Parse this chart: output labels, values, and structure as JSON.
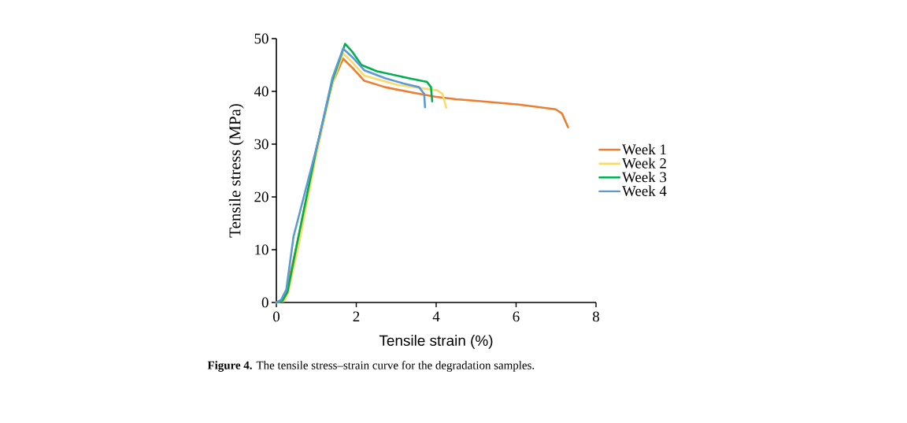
{
  "chart_data": {
    "type": "line",
    "xlabel": "Tensile strain (%)",
    "ylabel": "Tensile stress (MPa)",
    "xlim": [
      0,
      8
    ],
    "xticks": [
      0,
      2,
      4,
      6,
      8
    ],
    "ylim": [
      0,
      50
    ],
    "yticks": [
      0,
      10,
      20,
      30,
      40,
      50
    ],
    "grid": false,
    "legend": "right",
    "marker": "none",
    "line_style": "solid",
    "annotations": [
      "**Figure 4.** The tensile stress–strain curve for the degradation samples."
    ],
    "series": [
      {
        "name": "Week 1",
        "color": "#ed7d31",
        "x": [
          0,
          0.15,
          0.25,
          0.5,
          1.0,
          1.4,
          1.67,
          1.9,
          2.2,
          2.72,
          3.38,
          3.97,
          4.5,
          5.0,
          6.07,
          6.99,
          7.15,
          7.3
        ],
        "values": [
          0,
          0.3,
          2,
          10.5,
          29,
          41.5,
          46.2,
          44.5,
          42,
          40.8,
          39.8,
          39,
          38.5,
          38.2,
          37.5,
          36.6,
          35.8,
          33.2
        ]
      },
      {
        "name": "Week 2",
        "color": "#ffd966",
        "x": [
          0,
          0.2,
          0.3,
          0.55,
          1.0,
          1.4,
          1.67,
          1.9,
          2.2,
          3.05,
          4.03,
          4.16,
          4.25
        ],
        "values": [
          0,
          0.3,
          2,
          10.5,
          28,
          41.5,
          47.2,
          45.5,
          43,
          41.2,
          40.2,
          39.5,
          36.9
        ]
      },
      {
        "name": "Week 3",
        "color": "#00b050",
        "x": [
          0,
          0.15,
          0.28,
          0.5,
          1.0,
          1.4,
          1.72,
          1.9,
          2.13,
          2.52,
          3.31,
          3.77,
          3.87,
          3.9
        ],
        "values": [
          0,
          0.3,
          2,
          10.5,
          29,
          42,
          49,
          47.5,
          45,
          43.8,
          42.5,
          41.8,
          40.8,
          38.1
        ]
      },
      {
        "name": "Week 4",
        "color": "#5b9bd5",
        "x": [
          0,
          0.12,
          0.25,
          0.43,
          1.08,
          1.4,
          1.67,
          1.9,
          2.2,
          2.72,
          3.18,
          3.57,
          3.7,
          3.72
        ],
        "values": [
          0,
          0.5,
          2.5,
          12.5,
          31.5,
          42.5,
          48.1,
          46.5,
          44,
          42.5,
          41.5,
          40.8,
          39.5,
          37
        ]
      }
    ]
  }
}
